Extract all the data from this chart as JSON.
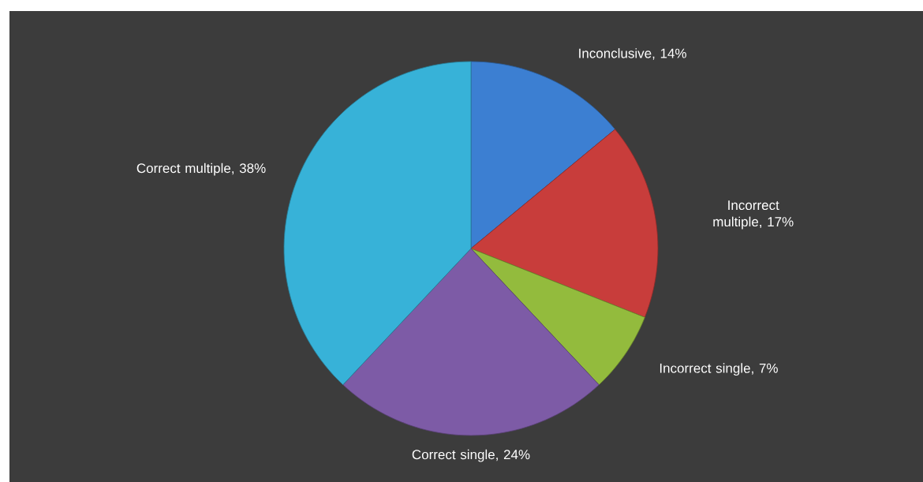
{
  "chart_data": {
    "type": "pie",
    "categories": [
      "Inconclusive, 14%",
      "Incorrect multiple, 17%",
      "Incorrect single, 7%",
      "Correct single, 24%",
      "Correct multiple, 38%"
    ],
    "values": [
      14,
      17,
      7,
      24,
      38
    ],
    "colors": [
      "#3c7fd2",
      "#c83d3b",
      "#93bb3d",
      "#7d5ba6",
      "#37b2d8"
    ]
  }
}
